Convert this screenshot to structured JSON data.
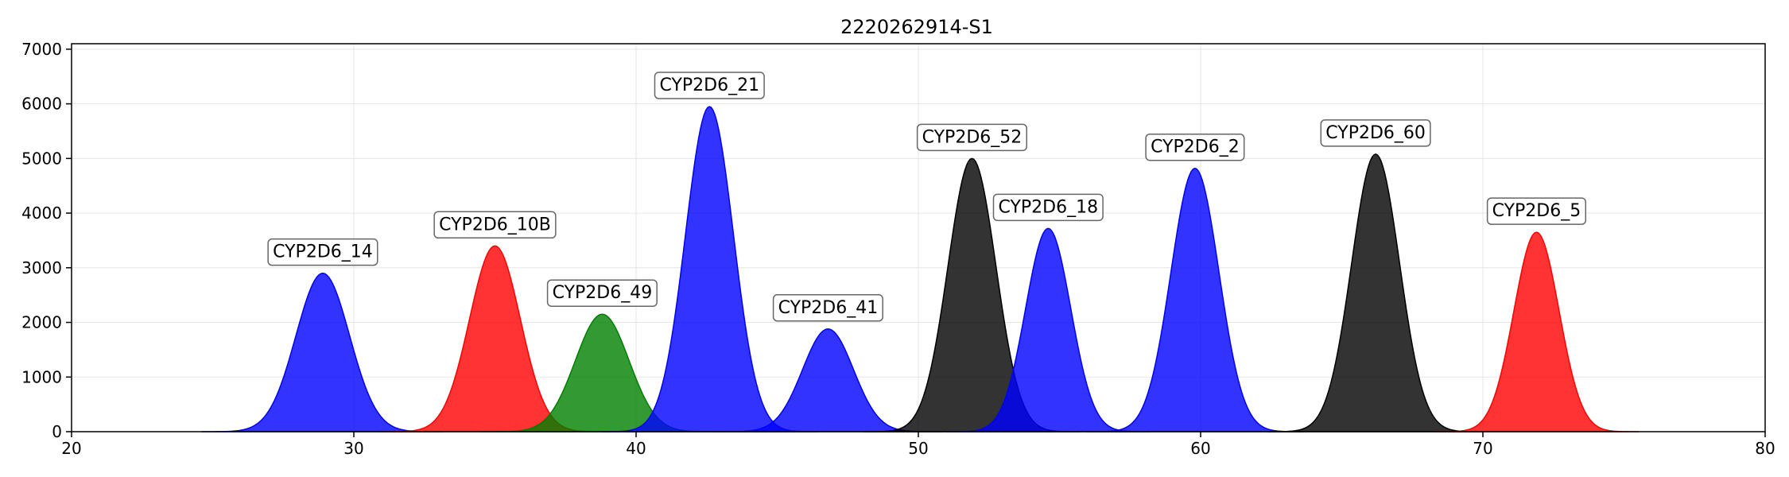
{
  "chart_data": {
    "type": "area",
    "title": "2220262914-S1",
    "xlabel": "",
    "ylabel": "",
    "xlim": [
      20,
      80
    ],
    "ylim": [
      0,
      7100
    ],
    "xticks": [
      20,
      30,
      40,
      50,
      60,
      70,
      80
    ],
    "yticks": [
      0,
      1000,
      2000,
      3000,
      4000,
      5000,
      6000,
      7000
    ],
    "grid": true,
    "peaks": [
      {
        "label": "CYP2D6_14",
        "center": 28.9,
        "height": 2900,
        "sigma": 0.95,
        "color": "#0000ff"
      },
      {
        "label": "CYP2D6_10B",
        "center": 35.0,
        "height": 3400,
        "sigma": 0.9,
        "color": "#ff0000"
      },
      {
        "label": "CYP2D6_49",
        "center": 38.8,
        "height": 2150,
        "sigma": 0.95,
        "color": "#008000"
      },
      {
        "label": "CYP2D6_21",
        "center": 42.6,
        "height": 5950,
        "sigma": 0.85,
        "color": "#0000ff"
      },
      {
        "label": "CYP2D6_41",
        "center": 46.8,
        "height": 1880,
        "sigma": 0.9,
        "color": "#0000ff"
      },
      {
        "label": "CYP2D6_52",
        "center": 51.9,
        "height": 5000,
        "sigma": 0.85,
        "color": "#000000"
      },
      {
        "label": "CYP2D6_18",
        "center": 54.6,
        "height": 3720,
        "sigma": 0.8,
        "color": "#0000ff"
      },
      {
        "label": "CYP2D6_2",
        "center": 59.8,
        "height": 4820,
        "sigma": 0.85,
        "color": "#0000ff"
      },
      {
        "label": "CYP2D6_60",
        "center": 66.2,
        "height": 5080,
        "sigma": 0.85,
        "color": "#000000"
      },
      {
        "label": "CYP2D6_5",
        "center": 71.9,
        "height": 3650,
        "sigma": 0.8,
        "color": "#ff0000"
      }
    ]
  }
}
